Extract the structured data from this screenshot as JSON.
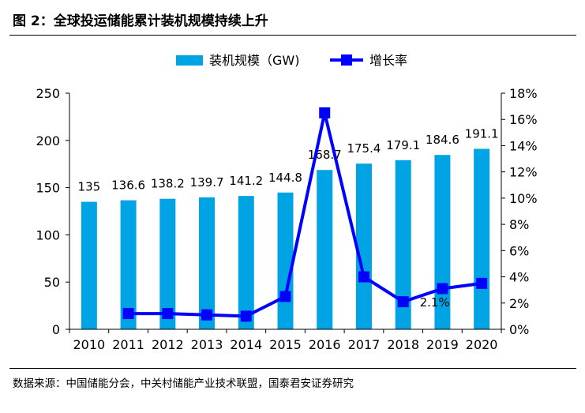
{
  "figure": {
    "title": "图 2：全球投运储能累计装机规模持续上升",
    "source": "数据来源：中国储能分会，中关村储能产业技术联盟，国泰君安证券研究"
  },
  "colors": {
    "bar": "#00a4e4",
    "line": "#0000ff",
    "axis": "#000000"
  },
  "chart_data": {
    "type": "bar",
    "categories": [
      "2010",
      "2011",
      "2012",
      "2013",
      "2014",
      "2015",
      "2016",
      "2017",
      "2018",
      "2019",
      "2020"
    ],
    "series": [
      {
        "name": "装机规模（GW)",
        "type": "bar",
        "axis": "left",
        "values": [
          135,
          136.6,
          138.2,
          139.7,
          141.2,
          144.8,
          168.7,
          175.4,
          179.1,
          184.6,
          191.1
        ],
        "data_labels": [
          "135",
          "136.6",
          "138.2",
          "139.7",
          "141.2",
          "144.8",
          "168.7",
          "175.4",
          "179.1",
          "184.6",
          "191.1"
        ]
      },
      {
        "name": "增长率",
        "type": "line",
        "axis": "right",
        "values": [
          null,
          1.2,
          1.2,
          1.1,
          1.0,
          2.5,
          16.5,
          4.0,
          2.1,
          3.1,
          3.5
        ],
        "annotation": {
          "index": 8,
          "label": "2.1%"
        }
      }
    ],
    "y_left": {
      "range": [
        0,
        250
      ],
      "ticks": [
        0,
        50,
        100,
        150,
        200,
        250
      ],
      "tick_labels": [
        "0",
        "50",
        "100",
        "150",
        "200",
        "250"
      ]
    },
    "y_right": {
      "range": [
        0,
        18
      ],
      "ticks": [
        0,
        2,
        4,
        6,
        8,
        10,
        12,
        14,
        16,
        18
      ],
      "tick_labels": [
        "0%",
        "2%",
        "4%",
        "6%",
        "8%",
        "10%",
        "12%",
        "14%",
        "16%",
        "18%"
      ]
    },
    "legend": {
      "position": "top-center"
    },
    "grid": false
  }
}
